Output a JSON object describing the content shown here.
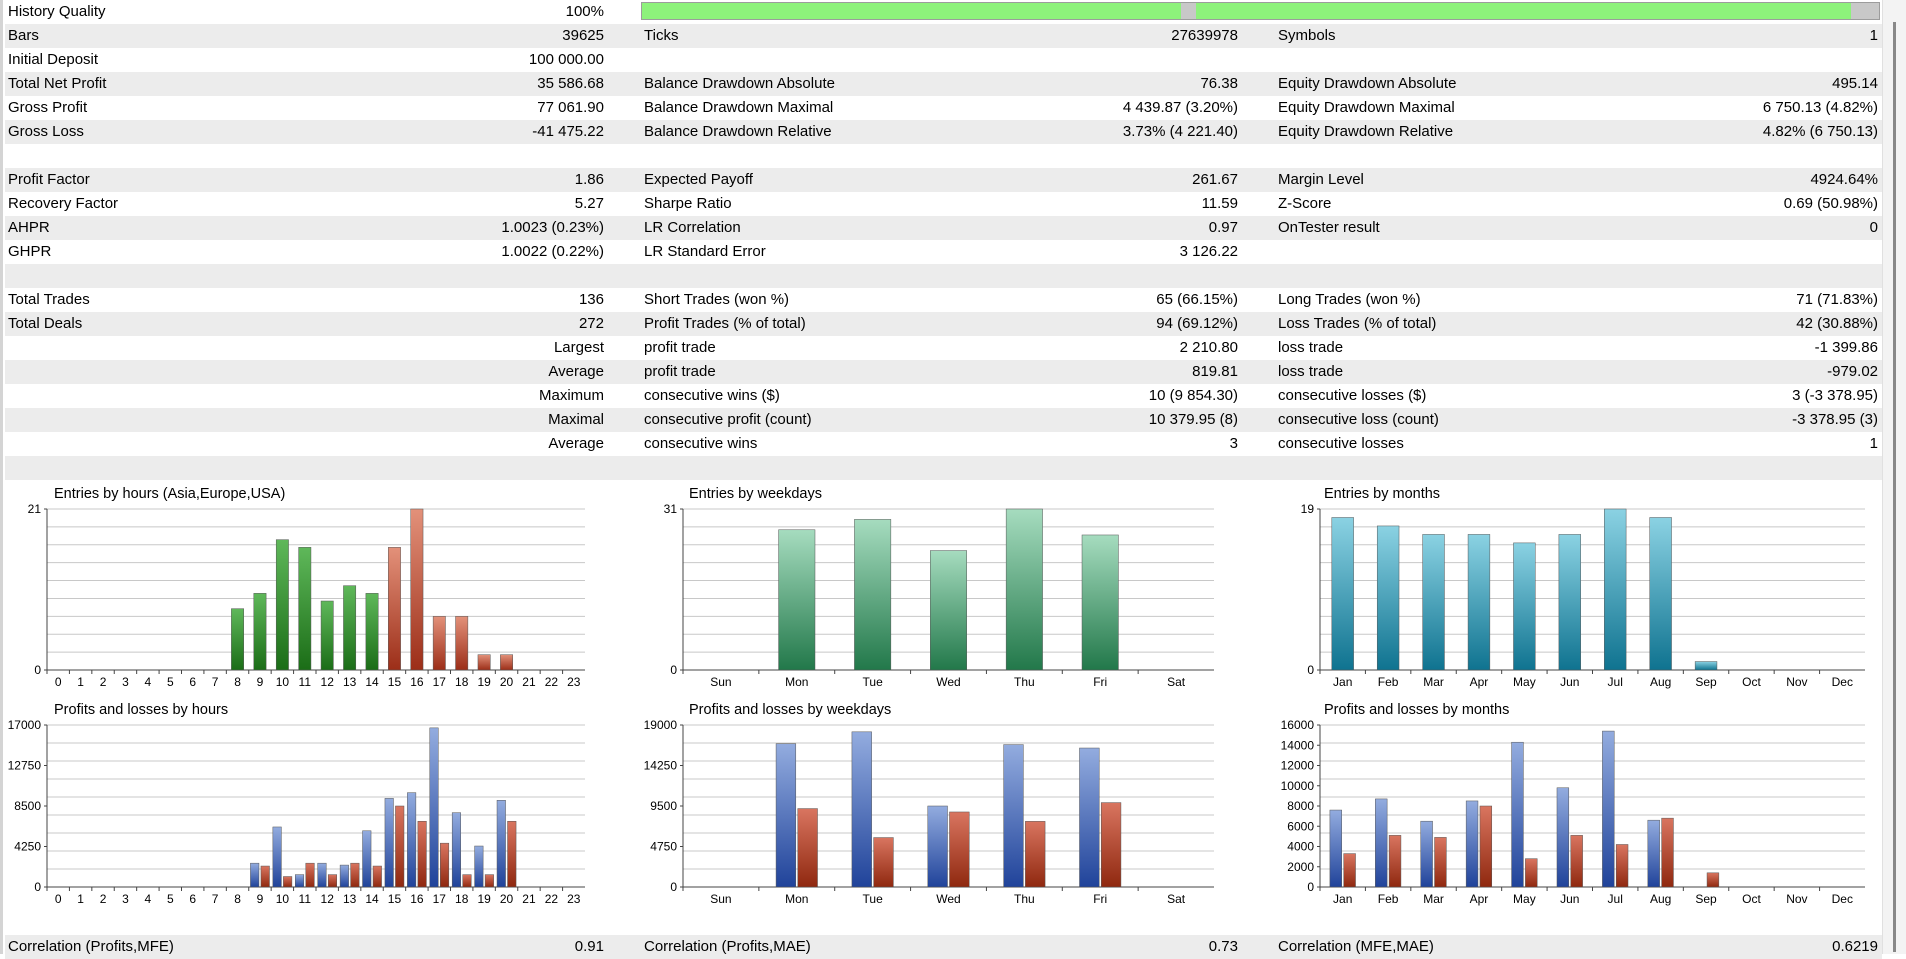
{
  "history_quality": {
    "label": "History Quality",
    "value": "100%"
  },
  "stats_rows": [
    [
      {
        "label": "Bars",
        "value": "39625"
      },
      {
        "label": "Ticks",
        "value": "27639978"
      },
      {
        "label": "Symbols",
        "value": "1"
      }
    ],
    [
      {
        "label": "Initial Deposit",
        "value": "100 000.00"
      },
      null,
      null
    ],
    [
      {
        "label": "Total Net Profit",
        "value": "35 586.68"
      },
      {
        "label": "Balance Drawdown Absolute",
        "value": "76.38"
      },
      {
        "label": "Equity Drawdown Absolute",
        "value": "495.14"
      }
    ],
    [
      {
        "label": "Gross Profit",
        "value": "77 061.90"
      },
      {
        "label": "Balance Drawdown Maximal",
        "value": "4 439.87 (3.20%)"
      },
      {
        "label": "Equity Drawdown Maximal",
        "value": "6 750.13 (4.82%)"
      }
    ],
    [
      {
        "label": "Gross Loss",
        "value": "-41 475.22"
      },
      {
        "label": "Balance Drawdown Relative",
        "value": "3.73% (4 221.40)"
      },
      {
        "label": "Equity Drawdown Relative",
        "value": "4.82% (6 750.13)"
      }
    ],
    [
      null,
      null,
      null
    ],
    [
      {
        "label": "Profit Factor",
        "value": "1.86"
      },
      {
        "label": "Expected Payoff",
        "value": "261.67"
      },
      {
        "label": "Margin Level",
        "value": "4924.64%"
      }
    ],
    [
      {
        "label": "Recovery Factor",
        "value": "5.27"
      },
      {
        "label": "Sharpe Ratio",
        "value": "11.59"
      },
      {
        "label": "Z-Score",
        "value": "0.69 (50.98%)"
      }
    ],
    [
      {
        "label": "AHPR",
        "value": "1.0023 (0.23%)"
      },
      {
        "label": "LR Correlation",
        "value": "0.97"
      },
      {
        "label": "OnTester result",
        "value": "0"
      }
    ],
    [
      {
        "label": "GHPR",
        "value": "1.0022 (0.22%)"
      },
      {
        "label": "LR Standard Error",
        "value": "3 126.22"
      },
      null
    ],
    [
      null,
      null,
      null
    ],
    [
      {
        "label": "Total Trades",
        "value": "136"
      },
      {
        "label": "Short Trades (won %)",
        "value": "65 (66.15%)"
      },
      {
        "label": "Long Trades (won %)",
        "value": "71 (71.83%)"
      }
    ],
    [
      {
        "label": "Total Deals",
        "value": "272"
      },
      {
        "label": "Profit Trades (% of total)",
        "value": "94 (69.12%)"
      },
      {
        "label": "Loss Trades (% of total)",
        "value": "42 (30.88%)"
      }
    ],
    [
      {
        "label": "",
        "value": "Largest"
      },
      {
        "label": "profit trade",
        "value": "2 210.80"
      },
      {
        "label": "loss trade",
        "value": "-1 399.86"
      }
    ],
    [
      {
        "label": "",
        "value": "Average"
      },
      {
        "label": "profit trade",
        "value": "819.81"
      },
      {
        "label": "loss trade",
        "value": "-979.02"
      }
    ],
    [
      {
        "label": "",
        "value": "Maximum"
      },
      {
        "label": "consecutive wins ($)",
        "value": "10 (9 854.30)"
      },
      {
        "label": "consecutive losses ($)",
        "value": "3 (-3 378.95)"
      }
    ],
    [
      {
        "label": "",
        "value": "Maximal"
      },
      {
        "label": "consecutive profit (count)",
        "value": "10 379.95 (8)"
      },
      {
        "label": "consecutive loss (count)",
        "value": "-3 378.95 (3)"
      }
    ],
    [
      {
        "label": "",
        "value": "Average"
      },
      {
        "label": "consecutive wins",
        "value": "3"
      },
      {
        "label": "consecutive losses",
        "value": "1"
      }
    ],
    [
      null,
      null,
      null
    ]
  ],
  "correlation_row": [
    {
      "label": "Correlation (Profits,MFE)",
      "value": "0.91"
    },
    {
      "label": "Correlation (Profits,MAE)",
      "value": "0.73"
    },
    {
      "label": "Correlation (MFE,MAE)",
      "value": "0.6219"
    }
  ],
  "colors": {
    "green": "#2e8a2a",
    "red": "#b3442a",
    "sea": "#2e8b57",
    "teal": "#1d8fa8",
    "blue": "#3c5fb0",
    "brown": "#a9391f",
    "history_bar": "#8df27b",
    "row_alt": "#ececec"
  },
  "chart_data": [
    {
      "type": "bar",
      "title": "Entries by hours (Asia,Europe,USA)",
      "ylim": [
        0,
        21
      ],
      "yticks": [
        "0",
        "21"
      ],
      "categories": [
        "0",
        "1",
        "2",
        "3",
        "4",
        "5",
        "6",
        "7",
        "8",
        "9",
        "10",
        "11",
        "12",
        "13",
        "14",
        "15",
        "16",
        "17",
        "18",
        "19",
        "20",
        "21",
        "22",
        "23"
      ],
      "values": [
        0,
        0,
        0,
        0,
        0,
        0,
        0,
        0,
        8,
        10,
        17,
        16,
        9,
        11,
        10,
        16,
        21,
        7,
        7,
        2,
        2,
        0,
        0,
        0
      ],
      "colors": [
        "green",
        "green",
        "green",
        "green",
        "green",
        "green",
        "green",
        "green",
        "green",
        "green",
        "green",
        "green",
        "green",
        "green",
        "green",
        "red",
        "red",
        "red",
        "red",
        "red",
        "red",
        "red",
        "red",
        "red"
      ]
    },
    {
      "type": "bar",
      "title": "Entries by weekdays",
      "ylim": [
        0,
        31
      ],
      "yticks": [
        "0",
        "31"
      ],
      "categories": [
        "Sun",
        "Mon",
        "Tue",
        "Wed",
        "Thu",
        "Fri",
        "Sat"
      ],
      "values": [
        0,
        27,
        29,
        23,
        31,
        26,
        0
      ],
      "colors": [
        "sea",
        "sea",
        "sea",
        "sea",
        "sea",
        "sea",
        "sea"
      ]
    },
    {
      "type": "bar",
      "title": "Entries by months",
      "ylim": [
        0,
        19
      ],
      "yticks": [
        "0",
        "19"
      ],
      "categories": [
        "Jan",
        "Feb",
        "Mar",
        "Apr",
        "May",
        "Jun",
        "Jul",
        "Aug",
        "Sep",
        "Oct",
        "Nov",
        "Dec"
      ],
      "values": [
        18,
        17,
        16,
        16,
        15,
        16,
        19,
        18,
        1,
        0,
        0,
        0
      ],
      "colors": [
        "teal",
        "teal",
        "teal",
        "teal",
        "teal",
        "teal",
        "teal",
        "teal",
        "teal",
        "teal",
        "teal",
        "teal"
      ]
    },
    {
      "type": "bar",
      "title": "Profits and losses by hours",
      "ylim": [
        0,
        17000
      ],
      "yticks": [
        "0",
        "4250",
        "8500",
        "12750",
        "17000"
      ],
      "categories": [
        "0",
        "1",
        "2",
        "3",
        "4",
        "5",
        "6",
        "7",
        "8",
        "9",
        "10",
        "11",
        "12",
        "13",
        "14",
        "15",
        "16",
        "17",
        "18",
        "19",
        "20",
        "21",
        "22",
        "23"
      ],
      "series": [
        {
          "values": [
            0,
            0,
            0,
            0,
            0,
            0,
            0,
            0,
            0,
            2500,
            6300,
            1300,
            2500,
            2300,
            5900,
            9300,
            9900,
            16700,
            7800,
            4300,
            9100,
            0,
            0,
            0
          ]
        },
        {
          "values": [
            0,
            0,
            0,
            0,
            0,
            0,
            0,
            0,
            0,
            2200,
            1100,
            2500,
            1300,
            2500,
            2200,
            8500,
            6900,
            4600,
            1300,
            1300,
            6900,
            0,
            0,
            0
          ]
        }
      ]
    },
    {
      "type": "bar",
      "title": "Profits and losses by weekdays",
      "ylim": [
        0,
        19000
      ],
      "yticks": [
        "0",
        "4750",
        "9500",
        "14250",
        "19000"
      ],
      "categories": [
        "Sun",
        "Mon",
        "Tue",
        "Wed",
        "Thu",
        "Fri",
        "Sat"
      ],
      "series": [
        {
          "values": [
            0,
            16800,
            18200,
            9500,
            16700,
            16300,
            0
          ]
        },
        {
          "values": [
            0,
            9200,
            5800,
            8800,
            7700,
            9900,
            0
          ]
        }
      ]
    },
    {
      "type": "bar",
      "title": "Profits and losses by months",
      "ylim": [
        0,
        16000
      ],
      "yticks": [
        "0",
        "2000",
        "4000",
        "6000",
        "8000",
        "10000",
        "12000",
        "14000",
        "16000"
      ],
      "categories": [
        "Jan",
        "Feb",
        "Mar",
        "Apr",
        "May",
        "Jun",
        "Jul",
        "Aug",
        "Sep",
        "Oct",
        "Nov",
        "Dec"
      ],
      "series": [
        {
          "values": [
            7600,
            8700,
            6500,
            8500,
            14300,
            9800,
            15400,
            6600,
            0,
            0,
            0,
            0
          ]
        },
        {
          "values": [
            3300,
            5100,
            4900,
            8000,
            2800,
            5100,
            4200,
            6800,
            1400,
            0,
            0,
            0
          ]
        }
      ]
    }
  ]
}
